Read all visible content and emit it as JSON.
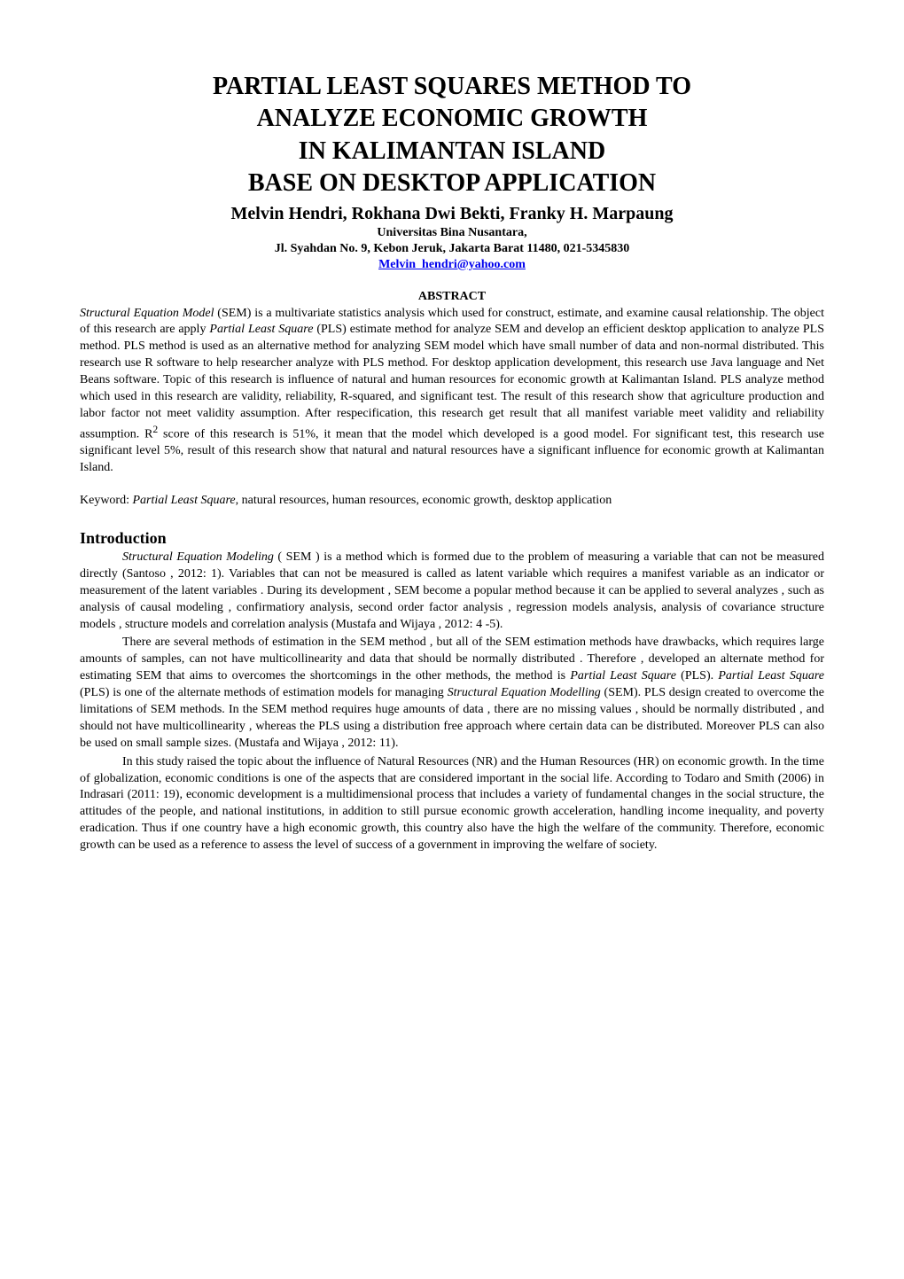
{
  "title": {
    "line1": "PARTIAL LEAST SQUARES METHOD TO",
    "line2": "ANALYZE ECONOMIC GROWTH",
    "line3": "IN KALIMANTAN ISLAND",
    "line4": "BASE ON DESKTOP APPLICATION"
  },
  "authors": "Melvin Hendri, Rokhana Dwi Bekti, Franky H. Marpaung",
  "affiliation": "Universitas Bina Nusantara,",
  "address": "Jl. Syahdan No. 9, Kebon Jeruk, Jakarta Barat 11480, 021-5345830",
  "email": "Melvin_hendri@yahoo.com",
  "abstract_heading": "ABSTRACT",
  "abstract": {
    "lead_italic": "Structural Equation Model",
    "body1": " (SEM) is a multivariate statistics analysis which used for construct, estimate, and examine causal relationship. The object of this research are apply ",
    "italic2": "Partial Least Square",
    "body2": " (PLS) estimate method for analyze SEM and develop an efficient desktop application to analyze PLS method. PLS method is used as an alternative method for analyzing SEM model which have small number of data and non-normal distributed. This research use R software to help researcher analyze with PLS method. For desktop application development, this research use Java language and Net Beans software. Topic of this research is influence of natural and human resources for economic growth at Kalimantan Island. PLS analyze method which used in this research are validity, reliability, R-squared, and significant test. The result of this research show that agriculture production and labor factor not meet validity assumption. After respecification, this research get result that all manifest variable meet validity and reliability assumption. R",
    "sup": "2",
    "body3": " score of this research is 51%, it mean that the model which developed is a good model. For significant test, this research use significant level 5%, result of this research show that natural and natural resources have a significant influence for economic growth at Kalimantan Island."
  },
  "keywords": {
    "label": "Keyword: ",
    "italic": "Partial Least Square",
    "rest": ", natural resources, human resources, economic growth, desktop application"
  },
  "intro_heading": "Introduction",
  "intro": {
    "p1_italic": "Structural Equation Modeling",
    "p1": " ( SEM ) is a method which is formed due to the problem of measuring a variable that can not be measured directly (Santoso , 2012: 1). Variables that can not be measured is called as latent variable which requires a manifest variable as an indicator or measurement of the latent variables . During its development , SEM become a popular method because it can be applied to several analyzes , such as analysis of causal modeling ,  confirmatiory analysis, second order factor analysis , regression models analysis, analysis of covariance structure models , structure models and correlation analysis (Mustafa and Wijaya , 2012: 4 -5).",
    "p2a": "There are several methods of estimation in the SEM method , but all of the SEM estimation methods have drawbacks, which requires large amounts of samples, can not have multicollinearity and data that should be normally distributed . Therefore , developed an alternate method for estimating SEM that aims to overcomes the shortcomings in the other methods, the method is ",
    "p2_italic1": "Partial Least Square",
    "p2b": " (PLS). ",
    "p2_italic2": "Partial Least Square",
    "p2c": " (PLS) is one of the alternate methods of estimation models for managing ",
    "p2_italic3": "Structural Equation Modelling",
    "p2d": " (SEM). PLS design created to overcome the limitations of SEM methods. In the SEM method requires huge amounts of data , there are no missing values , should be normally distributed , and should not have multicollinearity , whereas the PLS using a distribution free approach where certain data can be distributed. Moreover PLS can also be used on small sample sizes. (Mustafa and Wijaya , 2012: 11).",
    "p3": "In this study raised the topic about the influence of Natural Resources (NR) and the Human Resources (HR) on economic growth. In the time of globalization, economic conditions is one of the aspects that are considered important in the social life. According to Todaro and Smith (2006) in Indrasari (2011: 19), economic development is a multidimensional process that includes a variety of fundamental changes in the social structure, the attitudes of the people, and national institutions, in addition to still pursue economic growth acceleration, handling income inequality, and poverty eradication. Thus if one country have a high economic growth, this country also have the high the welfare of the community. Therefore, economic growth can be used as a reference to assess the level of success of a government in improving the welfare of society."
  }
}
